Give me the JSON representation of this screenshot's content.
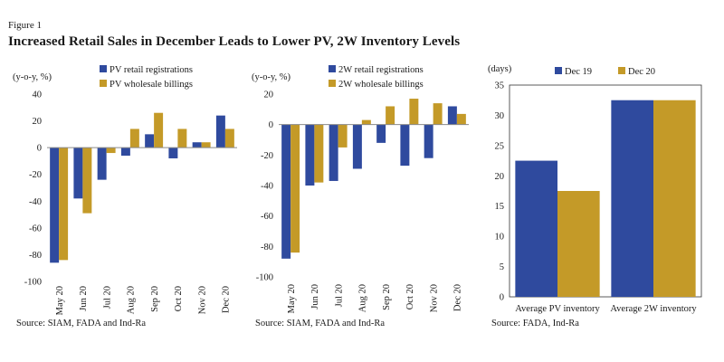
{
  "figure": {
    "label": "Figure 1",
    "title": "Increased Retail Sales in December Leads to Lower PV, 2W Inventory Levels"
  },
  "colors": {
    "blue": "#2f4a9e",
    "gold": "#c49a28"
  },
  "chart_data": [
    {
      "type": "bar",
      "unit_label": "(y-o-y, %)",
      "categories": [
        "May 20",
        "Jun 20",
        "Jul 20",
        "Aug 20",
        "Sep 20",
        "Oct 20",
        "Nov 20",
        "Dec 20"
      ],
      "series": [
        {
          "name": "PV retail registrations",
          "values": [
            -86,
            -38,
            -24,
            -6,
            10,
            -8,
            4,
            24
          ]
        },
        {
          "name": "PV wholesale billings",
          "values": [
            -84,
            -49,
            -4,
            14,
            26,
            14,
            4,
            14
          ]
        }
      ],
      "ylim": [
        -100,
        40
      ],
      "yticks": [
        -100,
        -80,
        -60,
        -40,
        -20,
        0,
        20,
        40
      ],
      "rotated_categories": true,
      "legend": "top",
      "source": "Source: SIAM, FADA and Ind-Ra"
    },
    {
      "type": "bar",
      "unit_label": "(y-o-y, %)",
      "categories": [
        "May 20",
        "Jun 20",
        "Jul 20",
        "Aug 20",
        "Sep 20",
        "Oct 20",
        "Nov 20",
        "Dec 20"
      ],
      "series": [
        {
          "name": "2W retail registrations",
          "values": [
            -88,
            -40,
            -37,
            -29,
            -12,
            -27,
            -22,
            12
          ]
        },
        {
          "name": "2W wholesale billings",
          "values": [
            -84,
            -38,
            -15,
            3,
            12,
            17,
            14,
            7
          ]
        }
      ],
      "ylim": [
        -100,
        20
      ],
      "yticks": [
        -100,
        -80,
        -60,
        -40,
        -20,
        0,
        20
      ],
      "rotated_categories": true,
      "legend": "top",
      "source": "Source: SIAM, FADA and Ind-Ra"
    },
    {
      "type": "bar",
      "unit_label": "(days)",
      "categories": [
        "Average PV inventory",
        "Average 2W inventory"
      ],
      "series": [
        {
          "name": "Dec 19",
          "values": [
            22.5,
            32.5
          ]
        },
        {
          "name": "Dec 20",
          "values": [
            17.5,
            32.5
          ]
        }
      ],
      "ylim": [
        0,
        35
      ],
      "yticks": [
        0,
        5,
        10,
        15,
        20,
        25,
        30,
        35
      ],
      "rotated_categories": false,
      "boxed": true,
      "legend": "top",
      "source": "Source: FADA, Ind-Ra"
    }
  ]
}
